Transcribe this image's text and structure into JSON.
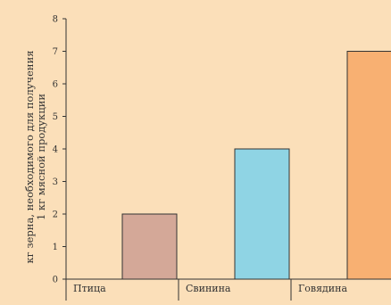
{
  "chart_data": {
    "type": "bar",
    "categories": [
      "Птица",
      "Свинина",
      "Говядина"
    ],
    "values": [
      2,
      4,
      7
    ],
    "colors": [
      "#d4a898",
      "#8fd4e4",
      "#f8b072"
    ],
    "background": "#fbdfb9",
    "axis_color": "#333333",
    "ylabel_lines": [
      "кг зерна, необходимого для получения",
      "1 кг мясной продукции"
    ],
    "xlabel": "",
    "title": "",
    "ylim": [
      0,
      8
    ],
    "yticks": [
      0,
      1,
      2,
      3,
      4,
      5,
      6,
      7,
      8
    ],
    "grid": false,
    "legend": "none"
  }
}
